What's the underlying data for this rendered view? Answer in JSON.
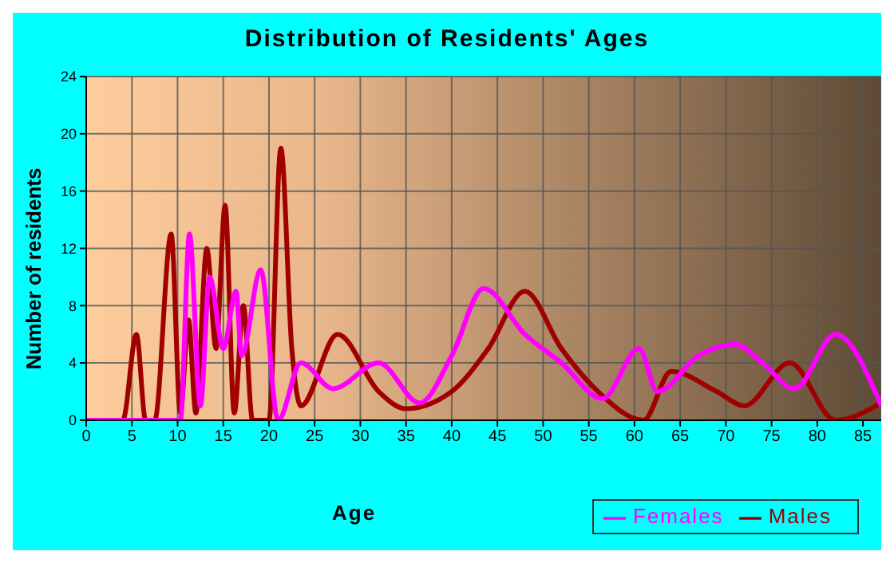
{
  "chart_data": {
    "type": "line",
    "title": "Distribution of Residents' Ages",
    "xlabel": "Age",
    "ylabel": "Number of residents",
    "xlim": [
      0,
      87
    ],
    "xticks": [
      0,
      5,
      10,
      15,
      20,
      25,
      30,
      35,
      40,
      45,
      50,
      55,
      60,
      65,
      70,
      75,
      80,
      85
    ],
    "ylim": [
      0,
      24
    ],
    "yticks": [
      0,
      4,
      8,
      12,
      16,
      20,
      24
    ],
    "grid": true,
    "legend": "bottom right",
    "marker": "none",
    "line_style": "solid",
    "series": [
      {
        "name": "Males",
        "color": "#a00000",
        "x": [
          0,
          4,
          5.5,
          6.5,
          7.5,
          9.3,
          10.3,
          11.2,
          12,
          13.2,
          14.2,
          15.2,
          16.2,
          17.2,
          18.2,
          20,
          21.3,
          22.5,
          23.5,
          27.5,
          32,
          35,
          40,
          44,
          48,
          52,
          56,
          61,
          64,
          69,
          72,
          77,
          82,
          87
        ],
        "values": [
          0,
          0,
          6,
          0,
          0,
          13,
          0.5,
          7,
          0.5,
          12,
          5,
          15,
          0.5,
          8,
          0,
          0,
          19,
          5,
          1,
          6,
          2,
          0.8,
          2,
          5,
          9,
          5,
          2,
          0,
          3.4,
          2,
          1,
          4,
          0,
          1.2
        ]
      },
      {
        "name": "Females",
        "color": "#ff00ff",
        "x": [
          0,
          9,
          10.3,
          11.3,
          12.5,
          13.5,
          15,
          16.4,
          17,
          19.1,
          21,
          23.5,
          27,
          32,
          36.5,
          40,
          43.5,
          48,
          52,
          56.5,
          60.5,
          62.5,
          67,
          71,
          74,
          77.5,
          82,
          87
        ],
        "values": [
          0,
          0,
          0,
          13,
          1,
          10,
          5,
          9,
          4.5,
          10.5,
          0,
          4,
          2.2,
          4,
          1.2,
          4.5,
          9.2,
          6,
          4,
          1.5,
          5,
          2,
          4.5,
          5.3,
          4,
          2.2,
          6,
          1
        ]
      }
    ]
  }
}
